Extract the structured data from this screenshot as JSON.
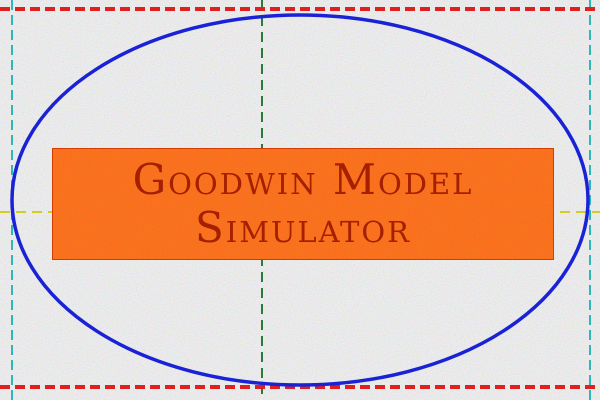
{
  "title": {
    "line1": "Goodwin Model",
    "line2": "Simulator"
  },
  "colors": {
    "background": "#f3f3f4",
    "title_box": "#ff6a10",
    "title_text": "#a52000",
    "orbit": "#1a22d6",
    "border_dash": "#e21f1f",
    "side_dash": "#2fb7b7",
    "axis_x": "#d6cc20",
    "axis_y": "#2b7a3a"
  }
}
